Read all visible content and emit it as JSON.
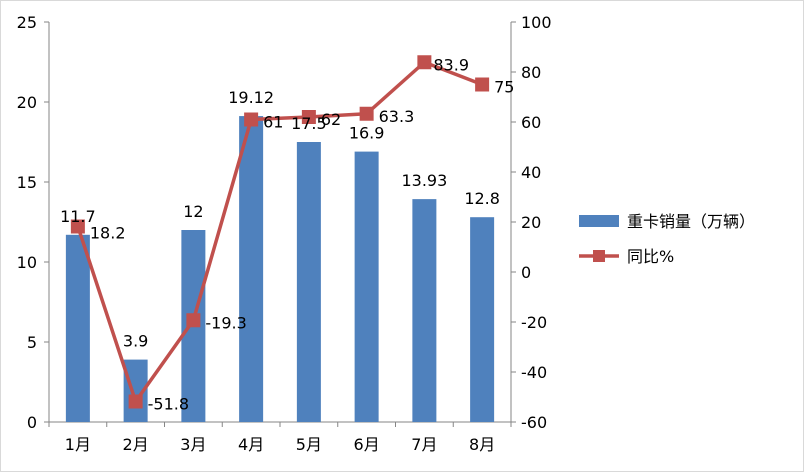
{
  "chart_data": {
    "type": "bar+line",
    "categories": [
      "1月",
      "2月",
      "3月",
      "4月",
      "5月",
      "6月",
      "7月",
      "8月"
    ],
    "series": [
      {
        "name": "重卡销量（万辆）",
        "type": "bar",
        "axis": "left",
        "color": "#4f81bd",
        "values": [
          11.7,
          3.9,
          12,
          19.12,
          17.5,
          16.9,
          13.93,
          12.8
        ],
        "labels": [
          "11.7",
          "3.9",
          "12",
          "19.12",
          "17.5",
          "16.9",
          "13.93",
          "12.8"
        ]
      },
      {
        "name": "同比%",
        "type": "line",
        "axis": "right",
        "color": "#c0504d",
        "marker": "square",
        "values": [
          18.2,
          -51.8,
          -19.3,
          61,
          62,
          63.3,
          83.9,
          75
        ],
        "labels": [
          "18.2",
          "-51.8",
          "-19.3",
          "61",
          "62",
          "63.3",
          "83.9",
          "75"
        ]
      }
    ],
    "y_left": {
      "min": 0,
      "max": 25,
      "step": 5,
      "ticks": [
        "0",
        "5",
        "10",
        "15",
        "20",
        "25"
      ]
    },
    "y_right": {
      "min": -60,
      "max": 100,
      "step": 20,
      "ticks": [
        "-60",
        "-40",
        "-20",
        "0",
        "20",
        "40",
        "60",
        "80",
        "100"
      ]
    },
    "grid": false,
    "legend": {
      "position": "right"
    },
    "title": "",
    "xlabel": "",
    "ylabel": ""
  }
}
